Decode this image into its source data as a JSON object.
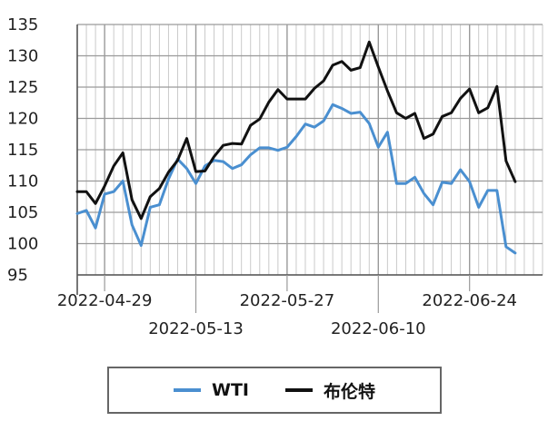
{
  "chart_data": {
    "type": "line",
    "title": "",
    "xlabel": "",
    "ylabel": "",
    "ylim": [
      95,
      135
    ],
    "yticks": [
      95,
      100,
      105,
      110,
      115,
      120,
      125,
      130,
      135
    ],
    "grid": true,
    "legend_position": "bottom",
    "x_tick_labels": [
      "2022-04-29",
      "2022-05-13",
      "2022-05-27",
      "2022-06-10",
      "2022-06-24"
    ],
    "x": [
      "2022-04-26",
      "2022-04-27",
      "2022-04-28",
      "2022-04-29",
      "2022-05-02",
      "2022-05-03",
      "2022-05-04",
      "2022-05-05",
      "2022-05-06",
      "2022-05-09",
      "2022-05-10",
      "2022-05-11",
      "2022-05-12",
      "2022-05-13",
      "2022-05-16",
      "2022-05-17",
      "2022-05-18",
      "2022-05-19",
      "2022-05-20",
      "2022-05-23",
      "2022-05-24",
      "2022-05-25",
      "2022-05-26",
      "2022-05-27",
      "2022-05-30",
      "2022-05-31",
      "2022-06-01",
      "2022-06-02",
      "2022-06-03",
      "2022-06-06",
      "2022-06-07",
      "2022-06-08",
      "2022-06-09",
      "2022-06-10",
      "2022-06-13",
      "2022-06-14",
      "2022-06-15",
      "2022-06-16",
      "2022-06-17",
      "2022-06-20",
      "2022-06-21",
      "2022-06-22",
      "2022-06-23",
      "2022-06-24",
      "2022-06-27",
      "2022-06-28",
      "2022-06-29",
      "2022-06-30",
      "2022-07-01",
      "2022-07-04",
      "2022-07-05",
      "2022-07-06"
    ],
    "series": [
      {
        "name": "WTI",
        "color": "#4a8fd0",
        "values": [
          104.8,
          105.3,
          102.5,
          107.9,
          108.3,
          110.0,
          103.0,
          99.7,
          105.8,
          106.2,
          110.3,
          113.5,
          112.0,
          109.6,
          112.4,
          113.3,
          113.1,
          112.0,
          112.6,
          114.2,
          115.3,
          115.3,
          114.9,
          115.4,
          117.1,
          119.1,
          118.6,
          119.6,
          122.2,
          121.6,
          120.8,
          121.0,
          119.2,
          115.4,
          117.8,
          109.6,
          109.6,
          110.6,
          108.0,
          106.2,
          109.8,
          109.6,
          111.8,
          109.9,
          105.8,
          108.5,
          108.5,
          99.5,
          98.5,
          null,
          null,
          null
        ]
      },
      {
        "name": "布伦特",
        "color": "#111111",
        "values": [
          108.3,
          108.3,
          106.4,
          109.2,
          112.4,
          114.5,
          107.0,
          104.0,
          107.5,
          108.8,
          111.4,
          113.3,
          116.8,
          111.5,
          111.6,
          113.9,
          115.7,
          116.0,
          115.9,
          118.9,
          119.9,
          122.6,
          124.6,
          123.1,
          123.1,
          123.1,
          124.8,
          126.0,
          128.5,
          129.1,
          127.7,
          128.1,
          132.2,
          128.2,
          124.4,
          120.9,
          120.0,
          120.8,
          116.8,
          117.5,
          120.3,
          120.9,
          123.2,
          124.7,
          120.9,
          121.7,
          125.1,
          113.2,
          109.9,
          null,
          null,
          null
        ]
      }
    ]
  },
  "legend": [
    {
      "label": "WTI",
      "color": "#4a8fd0"
    },
    {
      "label": "布伦特",
      "color": "#111111"
    }
  ]
}
